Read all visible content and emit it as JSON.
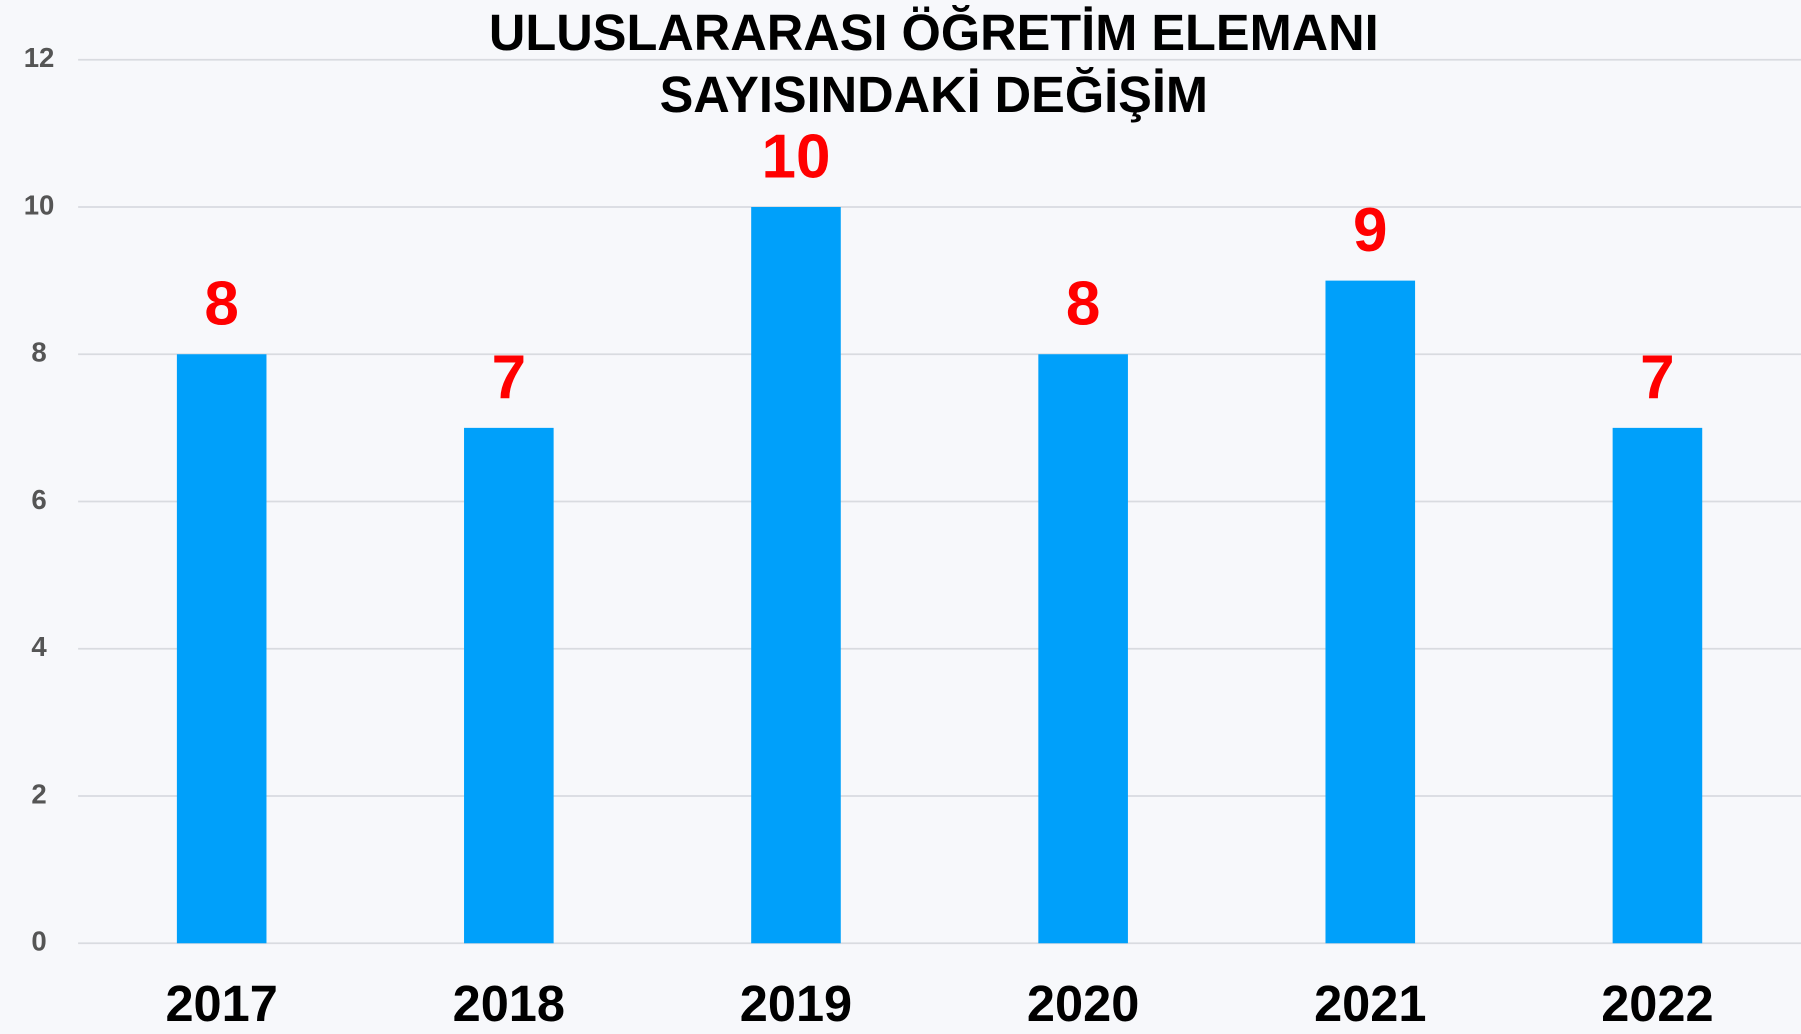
{
  "chart_data": {
    "type": "bar",
    "title": [
      "ULUSLARARASI ÖĞRETİM ELEMANI",
      "SAYISINDAKİ DEĞİŞİM"
    ],
    "categories": [
      "2017",
      "2018",
      "2019",
      "2020",
      "2021",
      "2022"
    ],
    "values": [
      8,
      7,
      10,
      8,
      9,
      7
    ],
    "color": "#00a0fa",
    "value_label_color": "#ff0000",
    "ylim": [
      0,
      12
    ],
    "yticks": [
      0,
      2,
      4,
      6,
      8,
      10,
      12
    ],
    "grid": true
  }
}
